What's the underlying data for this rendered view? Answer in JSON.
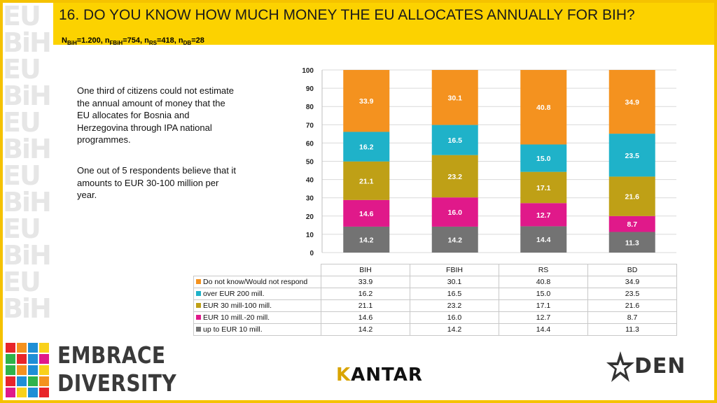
{
  "header": {
    "title": "16. DO YOU KNOW HOW MUCH MONEY THE EU ALLOCATES ANNUALLY FOR BIH?",
    "sample": {
      "n_bih": "1.200",
      "n_fbih": "754",
      "n_rs": "418",
      "n_db": "28"
    }
  },
  "commentary": [
    "One third of citizens could not estimate the annual amount of money that the EU allocates for Bosnia and Herzegovina through IPA national programmes.",
    "One out of 5 respondents believe that it amounts to EUR 30-100 million per year."
  ],
  "chart_data": {
    "type": "bar",
    "stacked": true,
    "categories": [
      "BIH",
      "FBIH",
      "RS",
      "BD"
    ],
    "ylim": [
      0,
      100
    ],
    "yticks": [
      0,
      10,
      20,
      30,
      40,
      50,
      60,
      70,
      80,
      90,
      100
    ],
    "grid": true,
    "series": [
      {
        "name": "up to EUR 10 mill.",
        "color": "#737373",
        "values": [
          14.2,
          14.2,
          14.4,
          11.3
        ]
      },
      {
        "name": "EUR 10 mill.-20 mill.",
        "color": "#e0198a",
        "values": [
          14.6,
          16.0,
          12.7,
          8.7
        ]
      },
      {
        "name": "EUR 30 mill-100 mill.",
        "color": "#bfa016",
        "values": [
          21.1,
          23.2,
          17.1,
          21.6
        ]
      },
      {
        "name": "over EUR 200 mill.",
        "color": "#1fb2c9",
        "values": [
          16.2,
          16.5,
          15.0,
          23.5
        ]
      },
      {
        "name": "Do not know/Would not respond",
        "color": "#f4921f",
        "values": [
          33.9,
          30.1,
          40.8,
          34.9
        ]
      }
    ]
  },
  "logos": {
    "brand_line1": "EMBRACE",
    "brand_line2": "DIVERSITY",
    "kantar_initial": "K",
    "kantar_rest": "ANTAR",
    "den": "DEN"
  },
  "colors": {
    "frame": "#f5c200",
    "header_bg": "#fcd200"
  }
}
